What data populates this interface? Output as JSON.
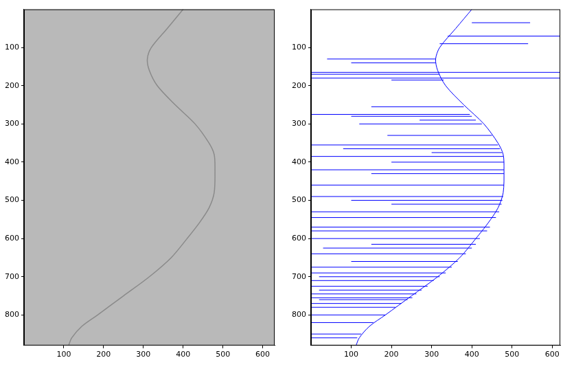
{
  "chart_data": [
    {
      "type": "image",
      "color": "#b9b9b9",
      "grid": false,
      "xlim": [
        0,
        630
      ],
      "ylim": [
        0,
        880
      ],
      "xticks": [
        100,
        200,
        300,
        400,
        500,
        600
      ],
      "yticks": [
        100,
        200,
        300,
        400,
        500,
        600,
        700,
        800
      ],
      "series": [
        {
          "color": "#8a8a8a",
          "x": [
            400,
            360,
            320,
            310,
            315,
            335,
            380,
            430,
            465,
            478,
            480,
            478,
            465,
            440,
            410,
            370,
            315,
            250,
            185,
            145,
            120,
            112
          ],
          "y": [
            0,
            50,
            100,
            130,
            160,
            200,
            250,
            300,
            350,
            380,
            420,
            480,
            520,
            560,
            600,
            650,
            700,
            750,
            800,
            830,
            860,
            880
          ]
        }
      ]
    },
    {
      "type": "line",
      "grid": false,
      "xlim": [
        0,
        620
      ],
      "ylim": [
        0,
        880
      ],
      "xticks": [
        100,
        200,
        300,
        400,
        500,
        600
      ],
      "yticks": [
        100,
        200,
        300,
        400,
        500,
        600,
        700,
        800
      ],
      "series": [
        {
          "color": "#0000ff",
          "x": [
            400,
            360,
            320,
            310,
            315,
            335,
            380,
            430,
            465,
            478,
            480,
            478,
            465,
            440,
            410,
            370,
            315,
            250,
            185,
            145,
            120,
            112
          ],
          "y": [
            0,
            50,
            100,
            130,
            160,
            200,
            250,
            300,
            350,
            380,
            420,
            480,
            520,
            560,
            600,
            650,
            700,
            750,
            800,
            830,
            860,
            880
          ]
        }
      ],
      "segments": {
        "color": "#0000ff",
        "y": [
          35,
          70,
          90,
          130,
          140,
          165,
          170,
          180,
          185,
          255,
          275,
          280,
          290,
          300,
          330,
          355,
          365,
          375,
          385,
          400,
          420,
          430,
          460,
          490,
          500,
          510,
          530,
          545,
          570,
          580,
          600,
          615,
          625,
          640,
          660,
          675,
          690,
          700,
          710,
          725,
          735,
          745,
          755,
          760,
          770,
          780,
          800,
          820,
          850,
          860
        ],
        "x_start": [
          400,
          340,
          320,
          40,
          100,
          0,
          0,
          0,
          200,
          150,
          0,
          100,
          270,
          120,
          190,
          0,
          80,
          300,
          0,
          200,
          0,
          150,
          0,
          0,
          100,
          200,
          0,
          0,
          0,
          0,
          0,
          150,
          30,
          0,
          100,
          0,
          0,
          20,
          0,
          0,
          20,
          0,
          0,
          20,
          0,
          0,
          0,
          0,
          0,
          0
        ],
        "x_end": [
          545,
          620,
          540,
          310,
          310,
          620,
          320,
          620,
          330,
          380,
          395,
          400,
          410,
          425,
          450,
          465,
          470,
          475,
          478,
          480,
          480,
          480,
          480,
          478,
          476,
          474,
          468,
          460,
          445,
          438,
          420,
          410,
          400,
          385,
          365,
          350,
          335,
          320,
          305,
          290,
          275,
          262,
          252,
          240,
          225,
          210,
          185,
          155,
          125,
          115
        ]
      }
    }
  ]
}
